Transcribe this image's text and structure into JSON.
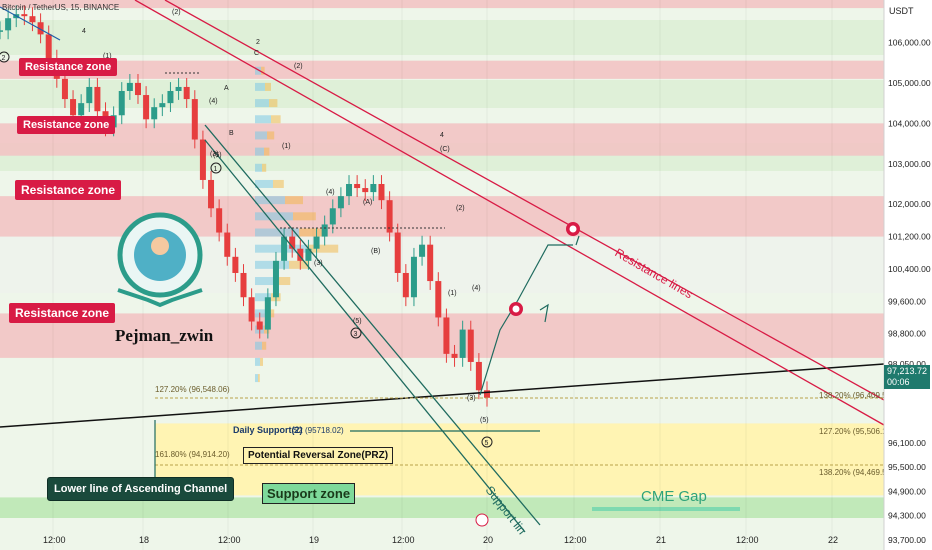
{
  "symbol": "Bitcoin / TetherUS, 15, BINANCE",
  "currency": "USDT",
  "author": "Pejman_zwin",
  "colors": {
    "resistance_fill": "#f2c4c4",
    "green_band": "#dff0d8",
    "white_band": "#f0f5ee",
    "support_fill": "#b9e6b0",
    "prz_fill": "#fff3b0",
    "resistance_label": "#d81b45",
    "bull": "#2c9c8a",
    "bear": "#e63e3e",
    "line_red": "#d81b45",
    "line_teal": "#1f6b5f",
    "line_black": "#111111"
  },
  "labels": {
    "resistance_zone": "Resistance zone",
    "resistance_lines": "Resistance lines",
    "support_zone": "Support zone",
    "support_line": "Support lin",
    "prz": "Potential Reversal Zone(PRZ)",
    "channel_lower": "Lower line of Ascending Channel",
    "cme_gap": "CME Gap",
    "daily_support": "Daily Support(2)",
    "daily_support_value": "S2 (95718.02)",
    "fib_127_top": "127.20% (96,548.06)",
    "fib_161": "161.80% (94,914.20)",
    "fib_138_top": "138.20% (96,409.50)",
    "fib_127_right": "127.20% (95,506.19)",
    "fib_138_right": "138.20% (94,469.52)"
  },
  "chart_data": {
    "type": "line",
    "title": "Bitcoin / TetherUS, 15, BINANCE",
    "xlabel": "",
    "ylabel": "",
    "x_ticks": [
      "12:00",
      "18",
      "12:00",
      "19",
      "12:00",
      "20",
      "12:00",
      "21",
      "12:00",
      "22"
    ],
    "y_ticks": [
      106000,
      105000,
      104000,
      103000,
      102000,
      101200,
      100400,
      99600,
      98800,
      98050,
      97213.72,
      96100,
      95500,
      94900,
      94300,
      93700
    ],
    "ylim": [
      93450,
      107050
    ],
    "current_price": "97,213.72",
    "countdown": "00:06",
    "price_series": [
      {
        "t": 0,
        "p": 106300
      },
      {
        "t": 1,
        "p": 106600
      },
      {
        "t": 2,
        "p": 106700
      },
      {
        "t": 3,
        "p": 106650
      },
      {
        "t": 4,
        "p": 106500
      },
      {
        "t": 5,
        "p": 106200
      },
      {
        "t": 6,
        "p": 105600
      },
      {
        "t": 7,
        "p": 105100
      },
      {
        "t": 8,
        "p": 104600
      },
      {
        "t": 9,
        "p": 104200
      },
      {
        "t": 10,
        "p": 104500
      },
      {
        "t": 11,
        "p": 104900
      },
      {
        "t": 12,
        "p": 104300
      },
      {
        "t": 13,
        "p": 103900
      },
      {
        "t": 14,
        "p": 104200
      },
      {
        "t": 15,
        "p": 104800
      },
      {
        "t": 16,
        "p": 105000
      },
      {
        "t": 17,
        "p": 104700
      },
      {
        "t": 18,
        "p": 104100
      },
      {
        "t": 19,
        "p": 104400
      },
      {
        "t": 20,
        "p": 104500
      },
      {
        "t": 21,
        "p": 104800
      },
      {
        "t": 22,
        "p": 104900
      },
      {
        "t": 23,
        "p": 104600
      },
      {
        "t": 24,
        "p": 103600
      },
      {
        "t": 25,
        "p": 102600
      },
      {
        "t": 26,
        "p": 101900
      },
      {
        "t": 27,
        "p": 101300
      },
      {
        "t": 28,
        "p": 100700
      },
      {
        "t": 29,
        "p": 100300
      },
      {
        "t": 30,
        "p": 99700
      },
      {
        "t": 31,
        "p": 99100
      },
      {
        "t": 32,
        "p": 98900
      },
      {
        "t": 33,
        "p": 99700
      },
      {
        "t": 34,
        "p": 100600
      },
      {
        "t": 35,
        "p": 101200
      },
      {
        "t": 36,
        "p": 100900
      },
      {
        "t": 37,
        "p": 100600
      },
      {
        "t": 38,
        "p": 100900
      },
      {
        "t": 39,
        "p": 101200
      },
      {
        "t": 40,
        "p": 101500
      },
      {
        "t": 41,
        "p": 101900
      },
      {
        "t": 42,
        "p": 102200
      },
      {
        "t": 43,
        "p": 102500
      },
      {
        "t": 44,
        "p": 102400
      },
      {
        "t": 45,
        "p": 102300
      },
      {
        "t": 46,
        "p": 102500
      },
      {
        "t": 47,
        "p": 102100
      },
      {
        "t": 48,
        "p": 101300
      },
      {
        "t": 49,
        "p": 100300
      },
      {
        "t": 50,
        "p": 99700
      },
      {
        "t": 51,
        "p": 100700
      },
      {
        "t": 52,
        "p": 101000
      },
      {
        "t": 53,
        "p": 100100
      },
      {
        "t": 54,
        "p": 99200
      },
      {
        "t": 55,
        "p": 98300
      },
      {
        "t": 56,
        "p": 98200
      },
      {
        "t": 57,
        "p": 98900
      },
      {
        "t": 58,
        "p": 98100
      },
      {
        "t": 59,
        "p": 97400
      },
      {
        "t": 60,
        "p": 97214
      }
    ]
  },
  "zones": {
    "resistance": [
      [
        105100,
        105550
      ],
      [
        103200,
        104000
      ],
      [
        101200,
        102200
      ],
      [
        98200,
        99300
      ],
      [
        106850,
        107050
      ]
    ],
    "prz": [
      94800,
      96580
    ],
    "support": [
      93700,
      94750
    ]
  },
  "waves": {
    "top_2": "(2)",
    "circle_2": "2",
    "sub_2": "(2)",
    "left_1": "(1)",
    "circle_4": "4",
    "left_4": "4",
    "sub_4a": "(4)",
    "label_A": "A",
    "label_B": "B",
    "label_C": "C",
    "sub_1a": "(1)",
    "sub_4b": "(4)",
    "label_A2": "(A)",
    "label_B2": "(B)",
    "sub_3": "(3)",
    "sub_5a": "(5)",
    "circle_3": "3",
    "sub_3b": "(3)",
    "sub_5": "(5)",
    "circle_1": "1",
    "circle_4b": "4",
    "label_C2": "(C)",
    "sub_2b": "(2)",
    "sub_1b": "(1)",
    "sub_4c": "(4)",
    "sub_3c": "(3)",
    "sub_5b": "(5)",
    "circle_5": "5",
    "left_2": "2"
  }
}
